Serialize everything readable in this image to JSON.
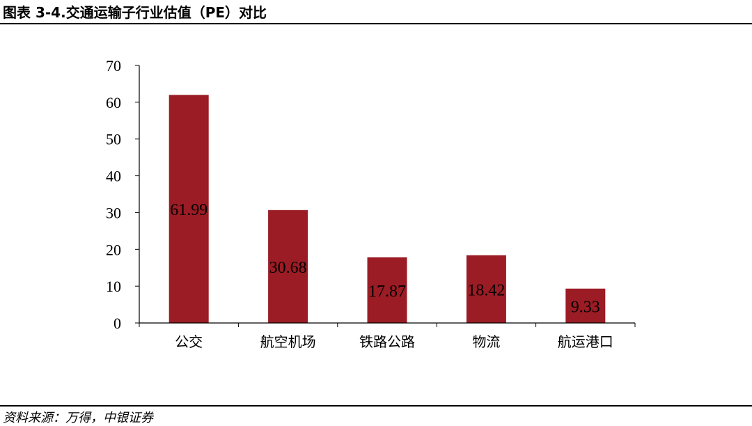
{
  "header": {
    "title": "图表 3-4.交通运输子行业估值（PE）对比"
  },
  "footer": {
    "source": "资料来源：万得，中银证券"
  },
  "colors": {
    "bar": "#9b1c24",
    "axis": "#000000"
  },
  "chart_data": {
    "type": "bar",
    "categories": [
      "公交",
      "航空机场",
      "铁路公路",
      "物流",
      "航运港口"
    ],
    "values": [
      61.99,
      30.68,
      17.87,
      18.42,
      9.33
    ],
    "data_labels": [
      "61.99",
      "30.68",
      "17.87",
      "18.42",
      "9.33"
    ],
    "ylim": [
      0,
      70
    ],
    "yticks": [
      0,
      10,
      20,
      30,
      40,
      50,
      60,
      70
    ],
    "grid": false,
    "legend": "none"
  }
}
